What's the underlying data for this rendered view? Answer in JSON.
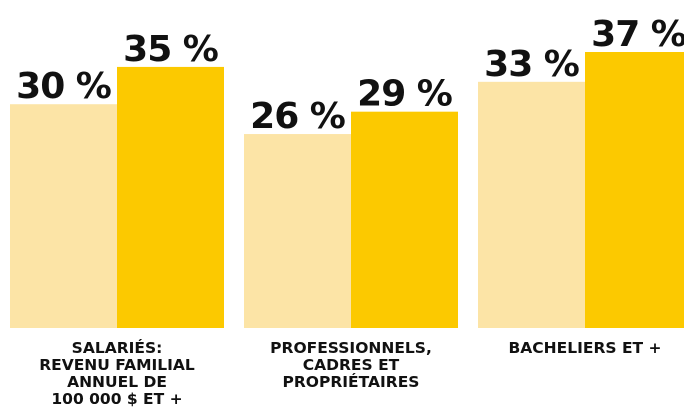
{
  "chart_data": {
    "type": "bar",
    "categories": [
      [
        "SALARIÉS:",
        "REVENU FAMILIAL",
        "ANNUEL DE",
        "100 000 $ ET +"
      ],
      [
        "PROFESSIONNELS,",
        "CADRES ET",
        "PROPRIÉTAIRES"
      ],
      [
        "BACHELIERS ET +"
      ]
    ],
    "series": [
      {
        "values": [
          30,
          26,
          33
        ],
        "labels": [
          "30 %",
          "26 %",
          "33 %"
        ],
        "color": "#FCE4A6"
      },
      {
        "values": [
          35,
          29,
          37
        ],
        "labels": [
          "35 %",
          "29 %",
          "37 %"
        ],
        "color": "#FCC900"
      }
    ],
    "ylim": [
      0,
      37
    ],
    "grid": false,
    "legend": "none"
  }
}
